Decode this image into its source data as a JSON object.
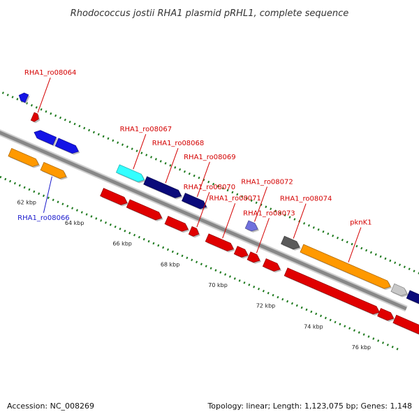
{
  "title": "Rhodococcus jostii RHA1 plasmid pRHL1, complete sequence",
  "footer": {
    "accession": "Accession: NC_008269",
    "summary": "Topology: linear; Length: 1,123,075 bp; Genes: 1,148"
  },
  "colors": {
    "label_red": "#d40000",
    "label_blue": "#1a1acc",
    "backbone": "#888888",
    "tick_green": "#1e7a1e",
    "red": "#e00000",
    "blue": "#1414e6",
    "orange": "#ff9900",
    "navy": "#0a0a7a",
    "cyan": "#33ffff",
    "lavender": "#7070dd",
    "darkgray": "#5a5a5a",
    "lightgray": "#c8c8c8"
  },
  "scale_labels": [
    {
      "text": "62 kbp",
      "kbp": 62
    },
    {
      "text": "64 kbp",
      "kbp": 64
    },
    {
      "text": "66 kbp",
      "kbp": 66
    },
    {
      "text": "68 kbp",
      "kbp": 68
    },
    {
      "text": "70 kbp",
      "kbp": 70
    },
    {
      "text": "72 kbp",
      "kbp": 72
    },
    {
      "text": "74 kbp",
      "kbp": 74
    },
    {
      "text": "76 kbp",
      "kbp": 76
    }
  ],
  "genes": [
    {
      "id": "g1",
      "lane": 3,
      "start": 60.1,
      "end": 60.42,
      "strand": "-",
      "color": "blue"
    },
    {
      "id": "g2",
      "lane": 2,
      "start": 60.9,
      "end": 61.15,
      "strand": "+",
      "color": "red",
      "label": "RHA1_ro08064"
    },
    {
      "id": "g3",
      "lane": 1,
      "start": 61.2,
      "end": 62.05,
      "strand": "-",
      "color": "blue"
    },
    {
      "id": "g4",
      "lane": -1,
      "start": 60.65,
      "end": 61.85,
      "strand": "+",
      "color": "orange"
    },
    {
      "id": "g5",
      "lane": 1,
      "start": 62.15,
      "end": 63.05,
      "strand": "+",
      "color": "blue"
    },
    {
      "id": "g6",
      "lane": -1,
      "start": 62.0,
      "end": 63.0,
      "strand": "+",
      "color": "orange",
      "label": "RHA1_ro08066"
    },
    {
      "id": "g7",
      "lane": 1,
      "start": 64.7,
      "end": 65.8,
      "strand": "+",
      "color": "cyan",
      "label": "RHA1_ro08067"
    },
    {
      "id": "g8",
      "lane": -1,
      "start": 64.5,
      "end": 65.55,
      "strand": "+",
      "color": "red"
    },
    {
      "id": "g9",
      "lane": 1,
      "start": 65.85,
      "end": 67.35,
      "strand": "+",
      "color": "navy",
      "label": "RHA1_ro08068"
    },
    {
      "id": "g10",
      "lane": -1,
      "start": 65.6,
      "end": 67.0,
      "strand": "+",
      "color": "red"
    },
    {
      "id": "g11",
      "lane": 1,
      "start": 67.45,
      "end": 68.4,
      "strand": "+",
      "color": "navy",
      "label": "RHA1_ro08069"
    },
    {
      "id": "g12",
      "lane": -1,
      "start": 67.2,
      "end": 68.1,
      "strand": "+",
      "color": "red"
    },
    {
      "id": "g13",
      "lane": -1,
      "start": 68.2,
      "end": 68.55,
      "strand": "+",
      "color": "red",
      "label": "RHA1_ro08070"
    },
    {
      "id": "g14",
      "lane": -1,
      "start": 68.9,
      "end": 70.0,
      "strand": "+",
      "color": "red",
      "label": "RHA1_ro08071"
    },
    {
      "id": "g15",
      "lane": 1,
      "start": 70.1,
      "end": 70.55,
      "strand": "+",
      "color": "lavender",
      "label": "RHA1_ro08072"
    },
    {
      "id": "g16",
      "lane": -1,
      "start": 70.1,
      "end": 70.6,
      "strand": "+",
      "color": "red"
    },
    {
      "id": "g17",
      "lane": -1,
      "start": 70.65,
      "end": 71.1,
      "strand": "+",
      "color": "red",
      "label": "RHA1_ro08073"
    },
    {
      "id": "g18",
      "lane": -1,
      "start": 71.3,
      "end": 71.95,
      "strand": "+",
      "color": "red"
    },
    {
      "id": "g19",
      "lane": 1,
      "start": 71.6,
      "end": 72.3,
      "strand": "+",
      "color": "darkgray",
      "label": "RHA1_ro08074"
    },
    {
      "id": "g20",
      "lane": 1,
      "start": 72.4,
      "end": 76.1,
      "strand": "+",
      "color": "orange",
      "label": "pknK1"
    },
    {
      "id": "g21",
      "lane": -1,
      "start": 72.2,
      "end": 76.1,
      "strand": "+",
      "color": "red"
    },
    {
      "id": "g22",
      "lane": 1,
      "start": 76.2,
      "end": 76.8,
      "strand": "+",
      "color": "lightgray"
    },
    {
      "id": "g23",
      "lane": -1,
      "start": 76.1,
      "end": 76.7,
      "strand": "+",
      "color": "red"
    },
    {
      "id": "g24",
      "lane": 1,
      "start": 76.85,
      "end": 78.0,
      "strand": "+",
      "color": "navy"
    },
    {
      "id": "g25",
      "lane": -1,
      "start": 76.75,
      "end": 78.0,
      "strand": "+",
      "color": "red"
    }
  ],
  "labels": [
    {
      "text": "RHA1_ro08064",
      "gene": "g2",
      "color": "label_red"
    },
    {
      "text": "RHA1_ro08066",
      "gene": "g6",
      "color": "label_blue"
    },
    {
      "text": "RHA1_ro08067",
      "gene": "g7",
      "color": "label_red"
    },
    {
      "text": "RHA1_ro08068",
      "gene": "g9",
      "color": "label_red"
    },
    {
      "text": "RHA1_ro08069",
      "gene": "g11",
      "color": "label_red"
    },
    {
      "text": "RHA1_ro08070",
      "gene": "g13",
      "color": "label_red"
    },
    {
      "text": "RHA1_ro08071",
      "gene": "g14",
      "color": "label_red"
    },
    {
      "text": "RHA1_ro08072",
      "gene": "g15",
      "color": "label_red"
    },
    {
      "text": "RHA1_ro08073",
      "gene": "g17",
      "color": "label_red"
    },
    {
      "text": "RHA1_ro08074",
      "gene": "g19",
      "color": "label_red"
    },
    {
      "text": "pknK1",
      "gene": "g20",
      "color": "label_red"
    }
  ]
}
